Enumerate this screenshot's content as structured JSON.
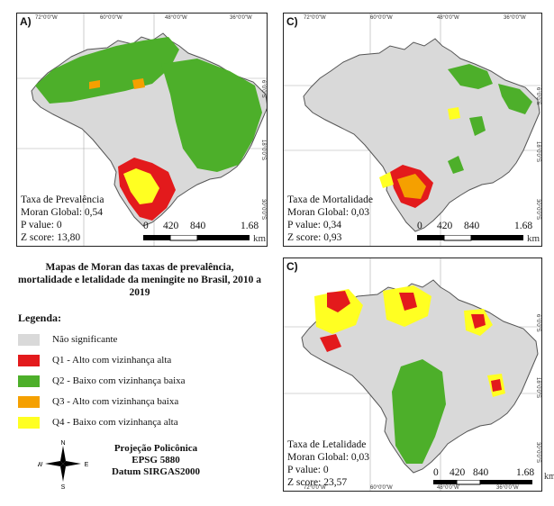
{
  "colors": {
    "not_significant": "#d9d9d9",
    "q1": "#e31a1c",
    "q2": "#4daf2a",
    "q3": "#f5a000",
    "q4": "#ffff22",
    "outline": "#555555"
  },
  "panels": [
    {
      "label": "A)",
      "stats": {
        "title": "Taxa de Prevalência",
        "moran": "Moran Global: 0,54",
        "pvalue": "P value: 0",
        "zscore": "Z score: 13,80"
      },
      "top_coords": [
        "72°0'0\"W",
        "60°0'0\"W",
        "48°0'0\"W",
        "36°0'0\"W"
      ],
      "side_coords": [
        "6°0'0\"S",
        "18°0'0\"S",
        "30°0'0\"S"
      ]
    },
    {
      "label": "C)",
      "stats": {
        "title": "Taxa de Mortalidade",
        "moran": "Moran Global: 0,03",
        "pvalue": "P value: 0,34",
        "zscore": "Z score: 0,93"
      },
      "top_coords": [
        "72°0'0\"W",
        "60°0'0\"W",
        "48°0'0\"W",
        "36°0'0\"W"
      ],
      "side_coords": [
        "6°0'0\"S",
        "18°0'0\"S",
        "30°0'0\"S"
      ]
    },
    {
      "label": "C)",
      "stats": {
        "title": "Taxa de Letalidade",
        "moran": "Moran Global: 0,03",
        "pvalue": "P value: 0",
        "zscore": "Z score: 23,57"
      },
      "bottom_coords": [
        "72°0'0\"W",
        "60°0'0\"W",
        "48°0'0\"W",
        "36°0'0\"W"
      ],
      "side_coords": [
        "6°0'0\"S",
        "18°0'0\"S",
        "30°0'0\"S"
      ]
    }
  ],
  "scale": {
    "labels": [
      "0",
      "420",
      "840",
      "1.68"
    ],
    "unit": "km"
  },
  "legend": {
    "title": "Mapas de Moran das taxas de prevalência, mortalidade e letalidade da meningite no Brasil, 2010 a 2019",
    "heading": "Legenda:",
    "items": [
      {
        "label": "Não significante",
        "color": "#d9d9d9"
      },
      {
        "label": "Q1 - Alto com vizinhança alta",
        "color": "#e31a1c"
      },
      {
        "label": "Q2 - Baixo com vizinhança baixa",
        "color": "#4daf2a"
      },
      {
        "label": "Q3 - Alto com vizinhança baixa",
        "color": "#f5a000"
      },
      {
        "label": "Q4 - Baixo com vizinhança alta",
        "color": "#ffff22"
      }
    ]
  },
  "compass": {
    "north": "N",
    "south": "S",
    "east": "E",
    "west": "W"
  },
  "projection": {
    "line1": "Projeção Policônica",
    "line2": "EPSG 5880",
    "line3": "Datum SIRGAS2000"
  }
}
